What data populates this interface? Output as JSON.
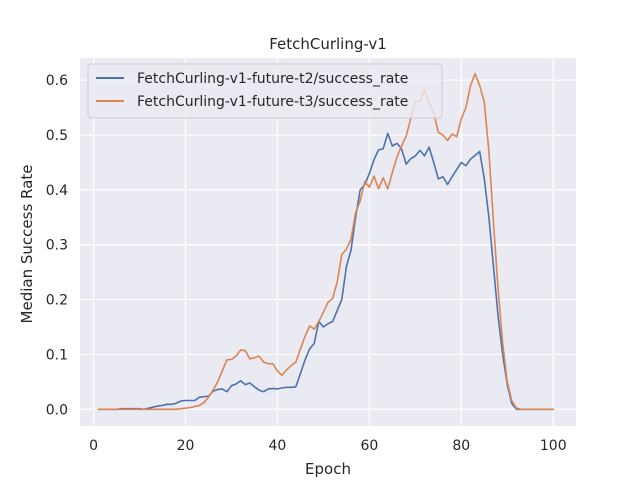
{
  "chart_data": {
    "type": "line",
    "title": "FetchCurling-v1",
    "xlabel": "Epoch",
    "ylabel": "Median Success Rate",
    "xlim": [
      -2.95,
      104.95
    ],
    "ylim": [
      -0.0305,
      0.6405
    ],
    "xticks": [
      0,
      20,
      40,
      60,
      80,
      100
    ],
    "yticks": [
      0.0,
      0.1,
      0.2,
      0.3,
      0.4,
      0.5,
      0.6
    ],
    "xtick_labels": [
      "0",
      "20",
      "40",
      "60",
      "80",
      "100"
    ],
    "ytick_labels": [
      "0.0",
      "0.1",
      "0.2",
      "0.3",
      "0.4",
      "0.5",
      "0.6"
    ],
    "grid": true,
    "legend_position": "upper-left",
    "background": "#eaeaf2",
    "series": [
      {
        "name": "FetchCurling-v1-future-t2/success_rate",
        "color": "#4c72b0",
        "x": [
          1,
          2,
          3,
          4,
          5,
          6,
          7,
          8,
          9,
          10,
          11,
          12,
          13,
          14,
          15,
          16,
          17,
          18,
          19,
          20,
          21,
          22,
          23,
          24,
          25,
          26,
          27,
          28,
          29,
          30,
          31,
          32,
          33,
          34,
          35,
          36,
          37,
          38,
          39,
          40,
          41,
          42,
          43,
          44,
          45,
          46,
          47,
          48,
          49,
          50,
          51,
          52,
          53,
          54,
          55,
          56,
          57,
          58,
          59,
          60,
          61,
          62,
          63,
          64,
          65,
          66,
          67,
          68,
          69,
          70,
          71,
          72,
          73,
          74,
          75,
          76,
          77,
          78,
          79,
          80,
          81,
          82,
          83,
          84,
          85,
          86,
          87,
          88,
          89,
          90,
          91,
          92,
          93,
          94,
          95,
          96,
          97,
          98,
          99,
          100
        ],
        "values": [
          0.0,
          0.0,
          0.0,
          0.0,
          0.0,
          0.001,
          0.001,
          0.001,
          0.001,
          0.001,
          0.0,
          0.002,
          0.004,
          0.006,
          0.007,
          0.009,
          0.009,
          0.011,
          0.015,
          0.016,
          0.016,
          0.016,
          0.022,
          0.023,
          0.024,
          0.033,
          0.036,
          0.037,
          0.032,
          0.043,
          0.046,
          0.052,
          0.045,
          0.048,
          0.041,
          0.035,
          0.032,
          0.037,
          0.038,
          0.037,
          0.039,
          0.04,
          0.04,
          0.041,
          0.065,
          0.09,
          0.11,
          0.12,
          0.16,
          0.15,
          0.156,
          0.16,
          0.18,
          0.2,
          0.26,
          0.29,
          0.35,
          0.4,
          0.41,
          0.43,
          0.455,
          0.473,
          0.475,
          0.503,
          0.48,
          0.485,
          0.475,
          0.447,
          0.457,
          0.462,
          0.472,
          0.462,
          0.478,
          0.45,
          0.42,
          0.424,
          0.41,
          0.424,
          0.437,
          0.45,
          0.444,
          0.456,
          0.463,
          0.47,
          0.42,
          0.35,
          0.26,
          0.17,
          0.1,
          0.045,
          0.01,
          0.0,
          0.0,
          0.0,
          0.0,
          0.0,
          0.0,
          0.0,
          0.0,
          0.0
        ]
      },
      {
        "name": "FetchCurling-v1-future-t3/success_rate",
        "color": "#dd8452",
        "x": [
          1,
          2,
          3,
          4,
          5,
          6,
          7,
          8,
          9,
          10,
          11,
          12,
          13,
          14,
          15,
          16,
          17,
          18,
          19,
          20,
          21,
          22,
          23,
          24,
          25,
          26,
          27,
          28,
          29,
          30,
          31,
          32,
          33,
          34,
          35,
          36,
          37,
          38,
          39,
          40,
          41,
          42,
          43,
          44,
          45,
          46,
          47,
          48,
          49,
          50,
          51,
          52,
          53,
          54,
          55,
          56,
          57,
          58,
          59,
          60,
          61,
          62,
          63,
          64,
          65,
          66,
          67,
          68,
          69,
          70,
          71,
          72,
          73,
          74,
          75,
          76,
          77,
          78,
          79,
          80,
          81,
          82,
          83,
          84,
          85,
          86,
          87,
          88,
          89,
          90,
          91,
          92,
          93,
          94,
          95,
          96,
          97,
          98,
          99,
          100
        ],
        "values": [
          0.0,
          0.0,
          0.0,
          0.0,
          0.0,
          0.0,
          0.0,
          0.0,
          0.0,
          0.0,
          0.0,
          0.0,
          0.0,
          0.0,
          0.0,
          0.0,
          0.0,
          0.0,
          0.001,
          0.002,
          0.003,
          0.005,
          0.007,
          0.012,
          0.022,
          0.035,
          0.05,
          0.07,
          0.09,
          0.091,
          0.097,
          0.108,
          0.107,
          0.092,
          0.094,
          0.097,
          0.086,
          0.083,
          0.083,
          0.07,
          0.062,
          0.072,
          0.08,
          0.086,
          0.11,
          0.133,
          0.152,
          0.146,
          0.16,
          0.177,
          0.195,
          0.202,
          0.232,
          0.282,
          0.292,
          0.31,
          0.358,
          0.38,
          0.415,
          0.405,
          0.425,
          0.402,
          0.422,
          0.402,
          0.432,
          0.46,
          0.48,
          0.498,
          0.53,
          0.56,
          0.562,
          0.582,
          0.56,
          0.54,
          0.505,
          0.5,
          0.49,
          0.502,
          0.497,
          0.53,
          0.55,
          0.59,
          0.612,
          0.59,
          0.56,
          0.47,
          0.34,
          0.22,
          0.12,
          0.05,
          0.015,
          0.002,
          0.0,
          0.0,
          0.0,
          0.0,
          0.0,
          0.0,
          0.0,
          0.0
        ]
      }
    ]
  }
}
